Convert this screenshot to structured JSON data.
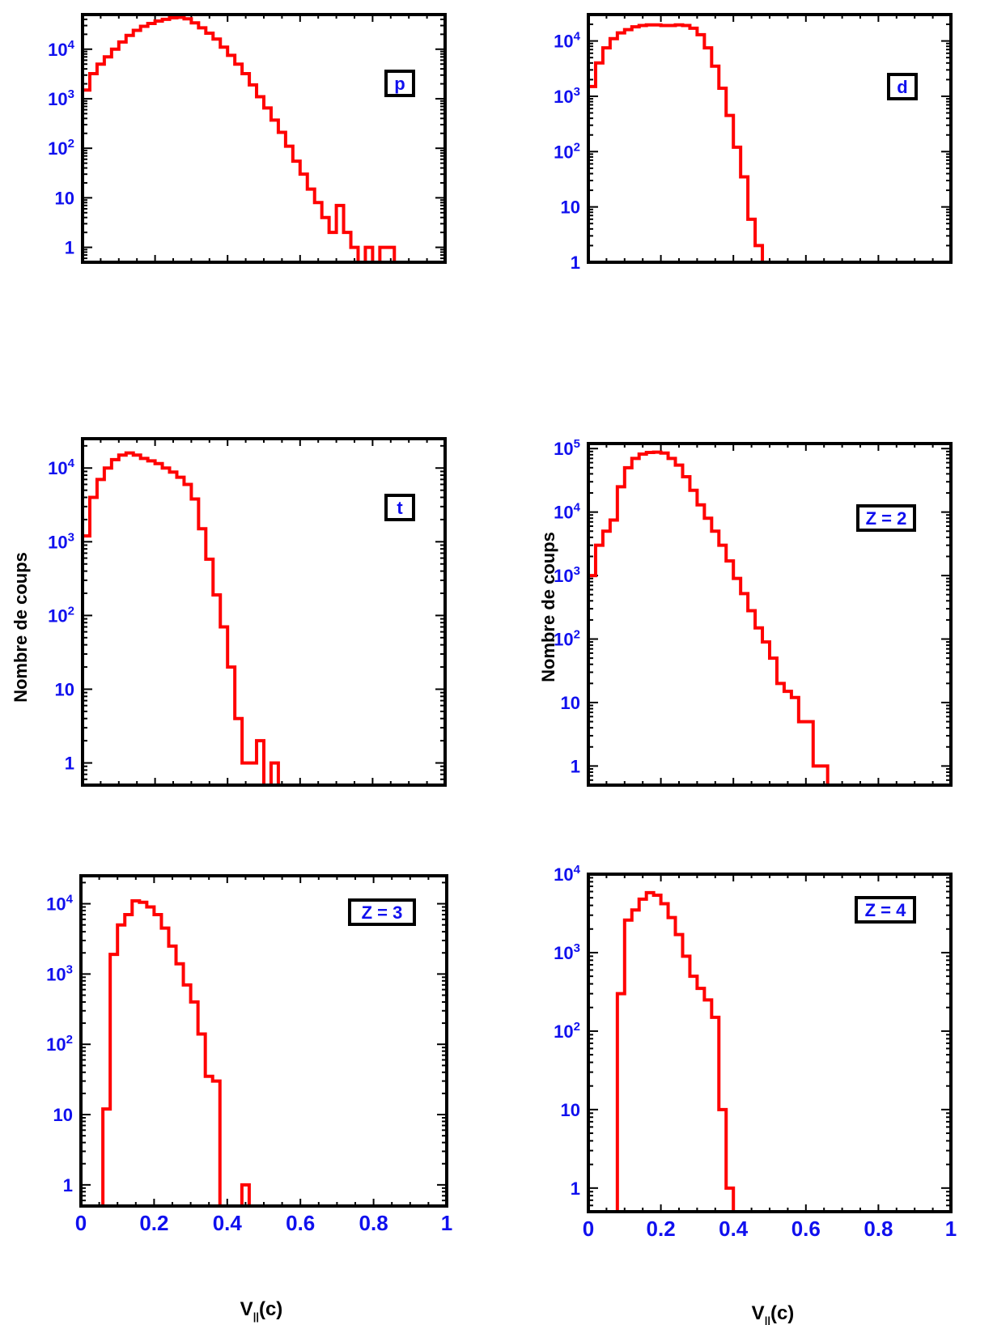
{
  "figure": {
    "ylabel_left": "Nombre de coups",
    "ylabel_right": "Nombre de coups",
    "xlabel_left_main": "V",
    "xlabel_left_sub": "||",
    "xlabel_left_unit": "(c)",
    "xlabel_right_main": "V",
    "xlabel_right_sub": "||",
    "xlabel_right_unit": "(c)"
  },
  "colors": {
    "histogram": "#ff0000",
    "ticks": "#1010ee",
    "frame": "#000000"
  },
  "chart_data": [
    {
      "type": "histogram-step",
      "panel_label": "p",
      "xlim": [
        0,
        1
      ],
      "ylog": true,
      "ylim": [
        0.5,
        50000
      ],
      "yticks": [
        {
          "value": 1,
          "label": "1"
        },
        {
          "value": 10,
          "label": "10"
        },
        {
          "value": 100,
          "label": "10",
          "exp": "2"
        },
        {
          "value": 1000,
          "label": "10",
          "exp": "3"
        },
        {
          "value": 10000,
          "label": "10",
          "exp": "4"
        }
      ],
      "xticks": [],
      "bin_width": 0.02,
      "counts": [
        1500,
        3200,
        5000,
        7000,
        10000,
        14000,
        19000,
        24000,
        29000,
        33000,
        37000,
        40000,
        43000,
        44000,
        41000,
        34000,
        27000,
        21000,
        16000,
        11000,
        7500,
        5000,
        3200,
        1900,
        1100,
        650,
        370,
        210,
        110,
        55,
        30,
        15,
        8,
        4,
        2,
        7,
        2,
        1,
        0,
        1,
        0,
        1,
        1,
        0,
        0,
        0,
        0,
        0,
        0,
        0
      ]
    },
    {
      "type": "histogram-step",
      "panel_label": "d",
      "xlim": [
        0,
        1
      ],
      "ylog": true,
      "ylim": [
        1,
        30000
      ],
      "yticks": [
        {
          "value": 1,
          "label": "1"
        },
        {
          "value": 10,
          "label": "10"
        },
        {
          "value": 100,
          "label": "10",
          "exp": "2"
        },
        {
          "value": 1000,
          "label": "10",
          "exp": "3"
        },
        {
          "value": 10000,
          "label": "10",
          "exp": "4"
        }
      ],
      "xticks": [],
      "bin_width": 0.02,
      "counts": [
        1500,
        4000,
        7500,
        11000,
        14000,
        16000,
        18000,
        19000,
        19500,
        19500,
        19000,
        19000,
        19500,
        19000,
        17000,
        13000,
        7500,
        3500,
        1400,
        450,
        120,
        35,
        6,
        2,
        1,
        0,
        0,
        0,
        0,
        0,
        0,
        0,
        0,
        0,
        0,
        0,
        0,
        0,
        0,
        0,
        0,
        0,
        0,
        0,
        0,
        0,
        0,
        0,
        0,
        0
      ]
    },
    {
      "type": "histogram-step",
      "panel_label": "t",
      "xlim": [
        0,
        1
      ],
      "ylog": true,
      "ylim": [
        0.5,
        25000
      ],
      "yticks": [
        {
          "value": 1,
          "label": "1"
        },
        {
          "value": 10,
          "label": "10"
        },
        {
          "value": 100,
          "label": "10",
          "exp": "2"
        },
        {
          "value": 1000,
          "label": "10",
          "exp": "3"
        },
        {
          "value": 10000,
          "label": "10",
          "exp": "4"
        }
      ],
      "xticks": [],
      "bin_width": 0.02,
      "counts": [
        1200,
        4000,
        7000,
        10000,
        13000,
        15000,
        16000,
        15000,
        13500,
        12500,
        11500,
        10000,
        8800,
        7500,
        6000,
        3800,
        1500,
        580,
        190,
        70,
        20,
        4,
        1,
        1,
        2,
        0,
        1,
        0,
        0,
        0,
        0,
        0,
        0,
        0,
        0,
        0,
        0,
        0,
        0,
        0,
        0,
        0,
        0,
        0,
        0,
        0,
        0,
        0,
        0,
        0
      ]
    },
    {
      "type": "histogram-step",
      "panel_label": "Z = 2",
      "xlim": [
        0,
        1
      ],
      "ylog": true,
      "ylim": [
        0.5,
        120000
      ],
      "yticks": [
        {
          "value": 1,
          "label": "1"
        },
        {
          "value": 10,
          "label": "10"
        },
        {
          "value": 100,
          "label": "10",
          "exp": "2"
        },
        {
          "value": 1000,
          "label": "10",
          "exp": "3"
        },
        {
          "value": 10000,
          "label": "10",
          "exp": "4"
        },
        {
          "value": 100000,
          "label": "10",
          "exp": "5"
        }
      ],
      "xticks": [],
      "bin_width": 0.02,
      "counts": [
        1000,
        3000,
        5000,
        7500,
        25000,
        50000,
        70000,
        82000,
        87000,
        88000,
        85000,
        70000,
        55000,
        36000,
        22000,
        13000,
        8000,
        5000,
        3000,
        1700,
        900,
        520,
        280,
        150,
        90,
        50,
        20,
        15,
        12,
        5,
        5,
        1,
        1,
        0,
        0,
        0,
        0,
        0,
        0,
        0,
        0,
        0,
        0,
        0,
        0,
        0,
        0,
        0,
        0,
        0
      ]
    },
    {
      "type": "histogram-step",
      "panel_label": "Z = 3",
      "xlim": [
        0,
        1
      ],
      "ylog": true,
      "ylim": [
        0.5,
        25000
      ],
      "yticks": [
        {
          "value": 1,
          "label": "1"
        },
        {
          "value": 10,
          "label": "10"
        },
        {
          "value": 100,
          "label": "10",
          "exp": "2"
        },
        {
          "value": 1000,
          "label": "10",
          "exp": "3"
        },
        {
          "value": 10000,
          "label": "10",
          "exp": "4"
        }
      ],
      "xticks": [
        {
          "value": 0,
          "label": "0"
        },
        {
          "value": 0.2,
          "label": "0.2"
        },
        {
          "value": 0.4,
          "label": "0.4"
        },
        {
          "value": 0.6,
          "label": "0.6"
        },
        {
          "value": 0.8,
          "label": "0.8"
        },
        {
          "value": 1,
          "label": "1"
        }
      ],
      "bin_width": 0.02,
      "counts": [
        0,
        0,
        0,
        12,
        1900,
        5000,
        7000,
        11000,
        10500,
        9000,
        7000,
        4500,
        2500,
        1400,
        700,
        400,
        140,
        35,
        30,
        0,
        0,
        0,
        1,
        0,
        0,
        0,
        0,
        0,
        0,
        0,
        0,
        0,
        0,
        0,
        0,
        0,
        0,
        0,
        0,
        0,
        0,
        0,
        0,
        0,
        0,
        0,
        0,
        0,
        0,
        0
      ]
    },
    {
      "type": "histogram-step",
      "panel_label": "Z = 4",
      "xlim": [
        0,
        1
      ],
      "ylog": true,
      "ylim": [
        0.5,
        10000
      ],
      "yticks": [
        {
          "value": 1,
          "label": "1"
        },
        {
          "value": 10,
          "label": "10"
        },
        {
          "value": 100,
          "label": "10",
          "exp": "2"
        },
        {
          "value": 1000,
          "label": "10",
          "exp": "3"
        },
        {
          "value": 10000,
          "label": "10",
          "exp": "4"
        }
      ],
      "xticks": [
        {
          "value": 0,
          "label": "0"
        },
        {
          "value": 0.2,
          "label": "0.2"
        },
        {
          "value": 0.4,
          "label": "0.4"
        },
        {
          "value": 0.6,
          "label": "0.6"
        },
        {
          "value": 0.8,
          "label": "0.8"
        },
        {
          "value": 1,
          "label": "1"
        }
      ],
      "bin_width": 0.02,
      "counts": [
        0,
        0,
        0,
        0,
        300,
        2600,
        3500,
        4800,
        5800,
        5400,
        4200,
        2800,
        1700,
        900,
        500,
        350,
        250,
        150,
        10,
        1,
        0,
        0,
        0,
        0,
        0,
        0,
        0,
        0,
        0,
        0,
        0,
        0,
        0,
        0,
        0,
        0,
        0,
        0,
        0,
        0,
        0,
        0,
        0,
        0,
        0,
        0,
        0,
        0,
        0,
        0
      ]
    }
  ]
}
